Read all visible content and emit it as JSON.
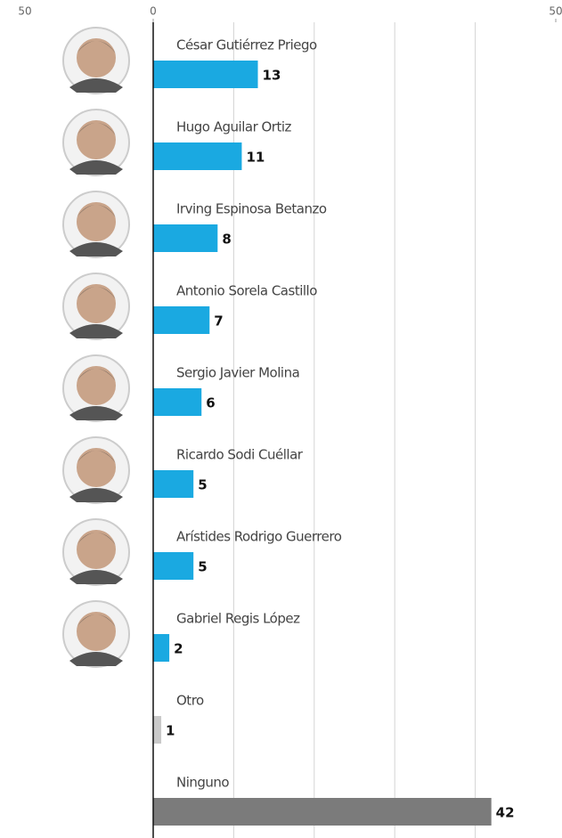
{
  "chart_data": {
    "type": "bar",
    "orientation": "horizontal",
    "categories": [
      "César Gutiérrez Priego",
      "Hugo Aguilar Ortiz",
      "Irving Espinosa Betanzo",
      "Antonio Sorela Castillo",
      "Sergio Javier Molina",
      "Ricardo Sodi Cuéllar",
      "Arístides Rodrigo Guerrero",
      "Gabriel Regis López",
      "Otro",
      "Ninguno"
    ],
    "values": [
      13,
      11,
      8,
      7,
      6,
      5,
      5,
      2,
      1,
      42
    ],
    "colors": [
      "#1aa9e1",
      "#1aa9e1",
      "#1aa9e1",
      "#1aa9e1",
      "#1aa9e1",
      "#1aa9e1",
      "#1aa9e1",
      "#1aa9e1",
      "#c9c9c9",
      "#7b7b7b"
    ],
    "photos": [
      true,
      true,
      true,
      true,
      true,
      true,
      true,
      true,
      false,
      false
    ],
    "xlim": [
      0,
      50
    ],
    "xticks": [
      0,
      50
    ],
    "gridlines": [
      10,
      20,
      30,
      40
    ],
    "left_edge_label": "50"
  }
}
